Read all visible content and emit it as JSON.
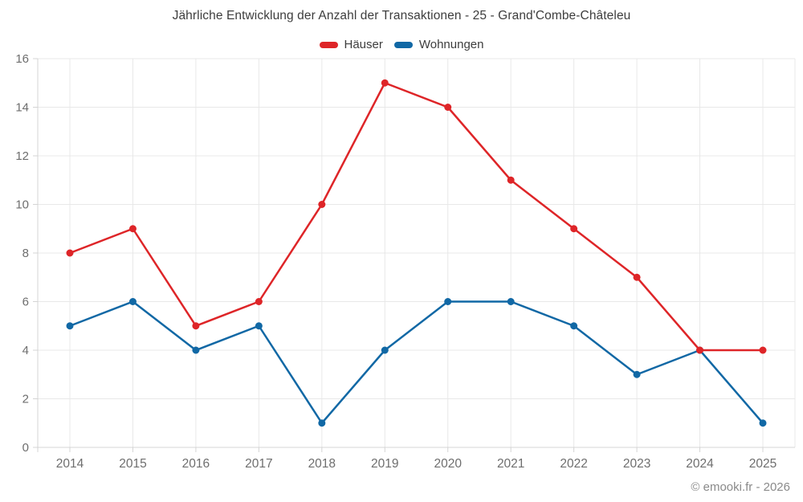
{
  "chart_data": {
    "type": "line",
    "title": "Jährliche Entwicklung der Anzahl der Transaktionen - 25 - Grand'Combe-Châteleu",
    "categories": [
      "2014",
      "2015",
      "2016",
      "2017",
      "2018",
      "2019",
      "2020",
      "2021",
      "2022",
      "2023",
      "2024",
      "2025"
    ],
    "series": [
      {
        "name": "Häuser",
        "color": "#de2528",
        "values": [
          8,
          9,
          5,
          6,
          10,
          15,
          14,
          11,
          9,
          7,
          4,
          4
        ]
      },
      {
        "name": "Wohnungen",
        "color": "#1168a5",
        "values": [
          5,
          6,
          4,
          5,
          1,
          4,
          6,
          6,
          5,
          3,
          4,
          1
        ]
      }
    ],
    "xlabel": "",
    "ylabel": "",
    "ylim": [
      0,
      16
    ],
    "ytick_step": 2,
    "grid": true,
    "legend_position": "top"
  },
  "footer": {
    "credit": "© emooki.fr - 2026"
  },
  "colors": {
    "background": "#ffffff",
    "title_text": "#3d3d3d",
    "axis_text": "#6e6e6e",
    "grid_line": "#e8e8e8",
    "axis_line": "#d4d4d4",
    "footer_text": "#8a8a8a"
  }
}
